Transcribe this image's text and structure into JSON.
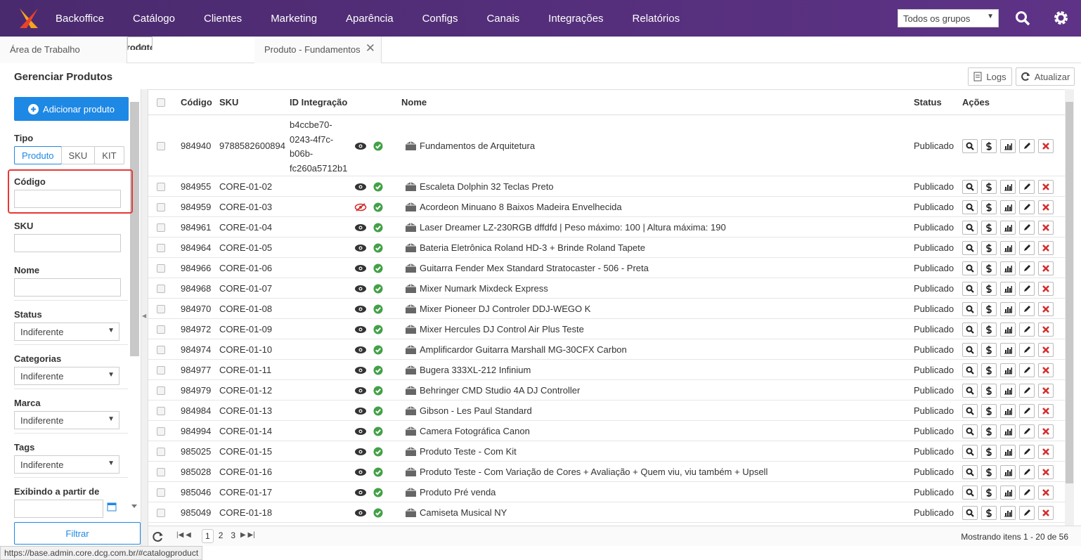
{
  "nav": {
    "brand": "Backoffice",
    "items": [
      "Catálogo",
      "Clientes",
      "Marketing",
      "Aparência",
      "Configs",
      "Canais",
      "Integrações",
      "Relatórios"
    ],
    "group_select": "Todos os grupos"
  },
  "tabs": [
    "Área de Trabalho",
    "Produto",
    "Produto - Fundamentos d"
  ],
  "page": {
    "title": "Gerenciar Produtos",
    "logs": "Logs",
    "refresh": "Atualizar"
  },
  "sidebar": {
    "add_button": "Adicionar produto",
    "type_label": "Tipo",
    "type_options": [
      "Produto",
      "SKU",
      "KIT"
    ],
    "fields": [
      {
        "label": "Código",
        "kind": "input",
        "highlight": true
      },
      {
        "label": "SKU",
        "kind": "input"
      },
      {
        "label": "Nome",
        "kind": "input"
      },
      {
        "label": "Status",
        "kind": "select",
        "value": "Indiferente"
      },
      {
        "label": "Categorias",
        "kind": "select",
        "value": "Indiferente"
      },
      {
        "label": "Marca",
        "kind": "select",
        "value": "Indiferente"
      },
      {
        "label": "Tags",
        "kind": "select",
        "value": "Indiferente"
      },
      {
        "label": "Exibindo a partir de",
        "kind": "date"
      }
    ],
    "filter_button": "Filtrar"
  },
  "table": {
    "headers": {
      "codigo": "Código",
      "sku": "SKU",
      "id": "ID Integração",
      "nome": "Nome",
      "status": "Status",
      "acoes": "Ações"
    },
    "rows": [
      {
        "codigo": "984940",
        "sku": "9788582600894",
        "id_integracao": "b4ccbe70-0243-4f7c-b06b-fc260a5712b1",
        "nome": "Fundamentos de Arquitetura",
        "status": "Publicado",
        "visible": true
      },
      {
        "codigo": "984955",
        "sku": "CORE-01-02",
        "nome": "Escaleta Dolphin 32 Teclas Preto",
        "status": "Publicado",
        "visible": true
      },
      {
        "codigo": "984959",
        "sku": "CORE-01-03",
        "nome": "Acordeon Minuano 8 Baixos Madeira Envelhecida",
        "status": "Publicado",
        "visible": false
      },
      {
        "codigo": "984961",
        "sku": "CORE-01-04",
        "nome": "Laser Dreamer LZ-230RGB dffdfd | Peso máximo: 100 | Altura máxima: 190",
        "status": "Publicado",
        "visible": true
      },
      {
        "codigo": "984964",
        "sku": "CORE-01-05",
        "nome": "Bateria Eletrônica Roland HD-3 + Brinde Roland Tapete",
        "status": "Publicado",
        "visible": true
      },
      {
        "codigo": "984966",
        "sku": "CORE-01-06",
        "nome": "Guitarra Fender Mex Standard Stratocaster - 506 - Preta",
        "status": "Publicado",
        "visible": true
      },
      {
        "codigo": "984968",
        "sku": "CORE-01-07",
        "nome": "Mixer Numark Mixdeck Express",
        "status": "Publicado",
        "visible": true
      },
      {
        "codigo": "984970",
        "sku": "CORE-01-08",
        "nome": "Mixer Pioneer DJ Controler DDJ-WEGO K",
        "status": "Publicado",
        "visible": true
      },
      {
        "codigo": "984972",
        "sku": "CORE-01-09",
        "nome": "Mixer Hercules DJ Control Air Plus Teste",
        "status": "Publicado",
        "visible": true
      },
      {
        "codigo": "984974",
        "sku": "CORE-01-10",
        "nome": "Amplificardor Guitarra Marshall MG-30CFX Carbon",
        "status": "Publicado",
        "visible": true
      },
      {
        "codigo": "984977",
        "sku": "CORE-01-11",
        "nome": "Bugera 333XL-212 Infinium",
        "status": "Publicado",
        "visible": true
      },
      {
        "codigo": "984979",
        "sku": "CORE-01-12",
        "nome": "Behringer CMD Studio 4A DJ Controller",
        "status": "Publicado",
        "visible": true
      },
      {
        "codigo": "984984",
        "sku": "CORE-01-13",
        "nome": "Gibson - Les Paul Standard",
        "status": "Publicado",
        "visible": true
      },
      {
        "codigo": "984994",
        "sku": "CORE-01-14",
        "nome": "Camera Fotográfica Canon",
        "status": "Publicado",
        "visible": true
      },
      {
        "codigo": "985025",
        "sku": "CORE-01-15",
        "nome": "Produto Teste - Com Kit",
        "status": "Publicado",
        "visible": true
      },
      {
        "codigo": "985028",
        "sku": "CORE-01-16",
        "nome": "Produto Teste - Com Variação de Cores + Avaliação + Quem viu, viu também + Upsell",
        "status": "Publicado",
        "visible": true
      },
      {
        "codigo": "985046",
        "sku": "CORE-01-17",
        "nome": "Produto Pré venda",
        "status": "Publicado",
        "visible": true
      },
      {
        "codigo": "985049",
        "sku": "CORE-01-18",
        "nome": "Camiseta Musical NY",
        "status": "Publicado",
        "visible": true
      }
    ]
  },
  "footer": {
    "pages": [
      "1",
      "2",
      "3"
    ],
    "summary": "Mostrando itens 1 - 20 de 56"
  },
  "status_bar": "https://base.admin.core.dcg.com.br/#catalogproduct"
}
